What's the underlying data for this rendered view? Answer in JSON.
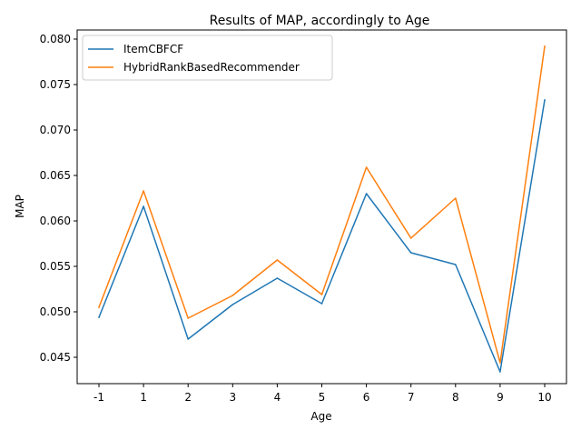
{
  "chart_data": {
    "type": "line",
    "title": "Results of MAP, accordingly to Age",
    "xlabel": "Age",
    "ylabel": "MAP",
    "categories": [
      "-1",
      "1",
      "2",
      "3",
      "4",
      "5",
      "6",
      "7",
      "8",
      "9",
      "10"
    ],
    "ylim": [
      0.0421,
      0.081
    ],
    "yticks": [
      0.045,
      0.05,
      0.055,
      0.06,
      0.065,
      0.07,
      0.075,
      0.08
    ],
    "ytick_labels": [
      "0.045",
      "0.050",
      "0.055",
      "0.060",
      "0.065",
      "0.070",
      "0.075",
      "0.080"
    ],
    "grid": false,
    "legend_position": "upper-left",
    "series": [
      {
        "name": "ItemCBFCF",
        "color": "#1f77b4",
        "values": [
          0.0494,
          0.0616,
          0.047,
          0.0508,
          0.0537,
          0.0509,
          0.063,
          0.0565,
          0.0552,
          0.0434,
          0.0733
        ]
      },
      {
        "name": "HybridRankBasedRecommender",
        "color": "#ff7f0e",
        "values": [
          0.0505,
          0.0633,
          0.0493,
          0.0518,
          0.0557,
          0.0519,
          0.0659,
          0.0581,
          0.0625,
          0.0444,
          0.0792
        ]
      }
    ]
  }
}
